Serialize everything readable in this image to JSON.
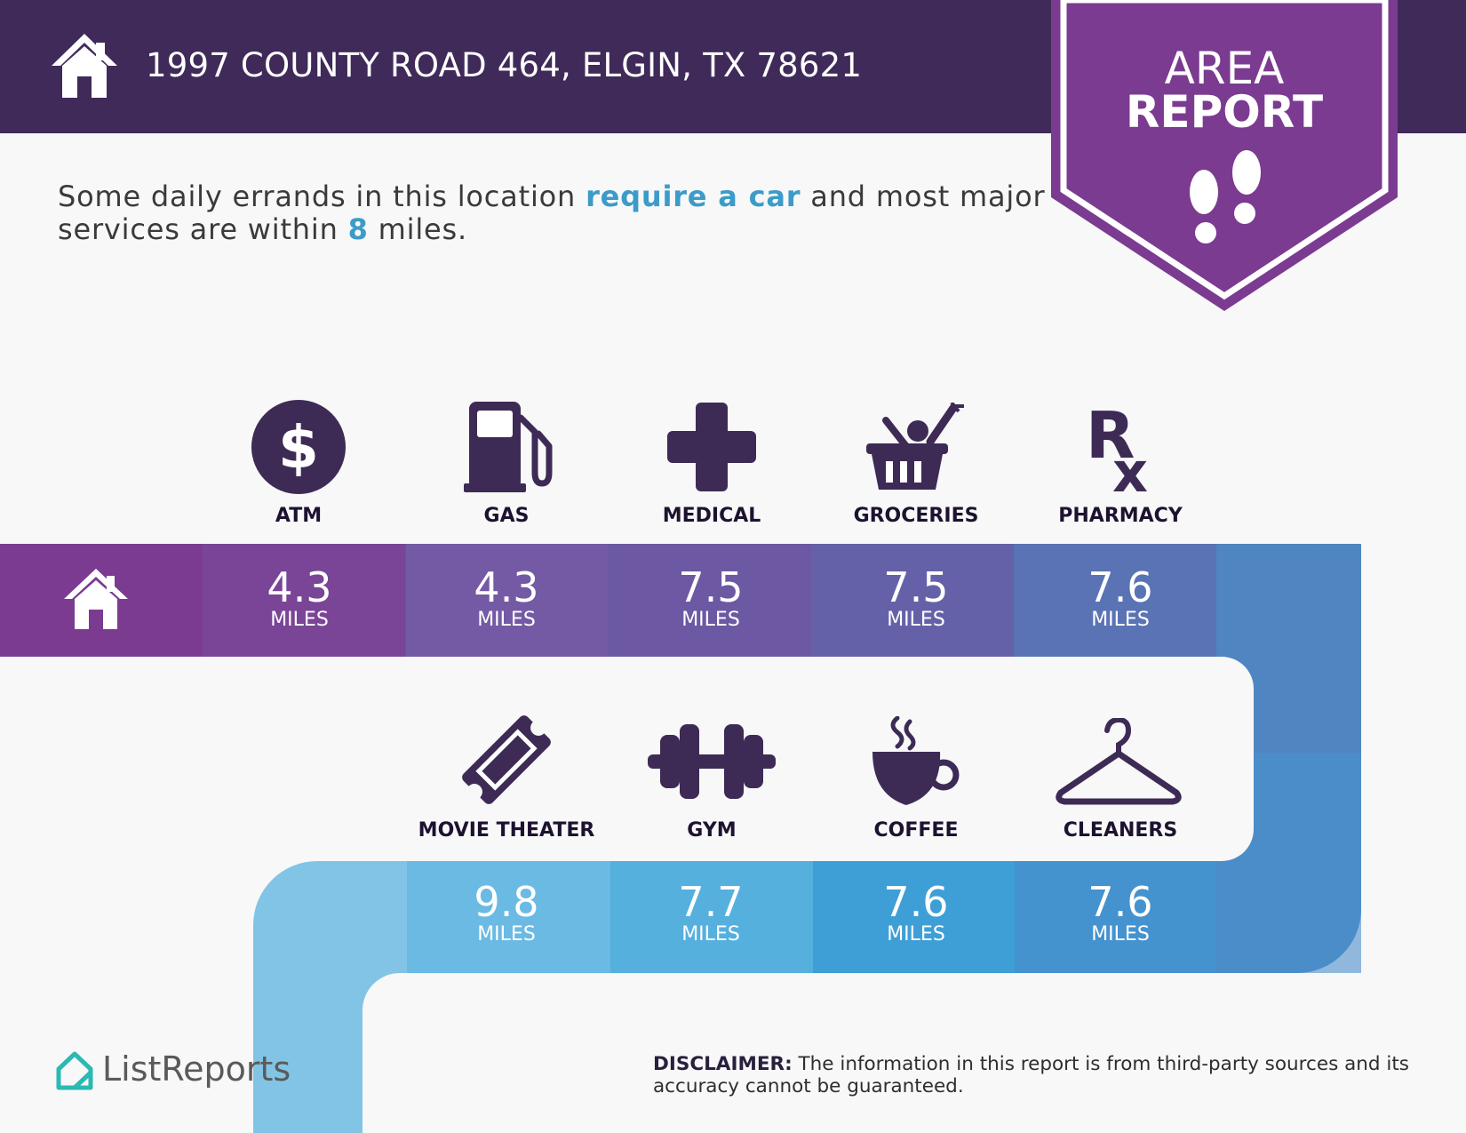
{
  "header": {
    "address": "1997 COUNTY ROAD 464, ELGIN, TX 78621",
    "home_icon": "house-icon"
  },
  "badge": {
    "line1": "AREA",
    "line2": "REPORT",
    "icon": "footprints-icon",
    "color": "#7b3b91"
  },
  "intro": {
    "part1": "Some daily errands in this location ",
    "highlight1": "require a car",
    "part2": " and most major services are within ",
    "highlight2": "8",
    "part3": " miles."
  },
  "amenities_top": [
    {
      "label": "ATM",
      "value": "4.3",
      "unit": "MILES",
      "icon": "dollar-icon"
    },
    {
      "label": "GAS",
      "value": "4.3",
      "unit": "MILES",
      "icon": "gas-pump-icon"
    },
    {
      "label": "MEDICAL",
      "value": "7.5",
      "unit": "MILES",
      "icon": "medical-cross-icon"
    },
    {
      "label": "GROCERIES",
      "value": "7.5",
      "unit": "MILES",
      "icon": "grocery-basket-icon"
    },
    {
      "label": "PHARMACY",
      "value": "7.6",
      "unit": "MILES",
      "icon": "rx-icon"
    }
  ],
  "amenities_bottom": [
    {
      "label": "MOVIE THEATER",
      "value": "9.8",
      "unit": "MILES",
      "icon": "ticket-icon"
    },
    {
      "label": "GYM",
      "value": "7.7",
      "unit": "MILES",
      "icon": "dumbbell-icon"
    },
    {
      "label": "COFFEE",
      "value": "7.6",
      "unit": "MILES",
      "icon": "coffee-cup-icon"
    },
    {
      "label": "CLEANERS",
      "value": "7.6",
      "unit": "MILES",
      "icon": "hanger-icon"
    }
  ],
  "footer": {
    "brand": "ListReports",
    "disclaimer_label": "DISCLAIMER:",
    "disclaimer_text": " The information in this report is from third-party sources and its accuracy cannot be guaranteed."
  },
  "colors": {
    "header_bg": "#3f2a59",
    "icon_color": "#3d2b56",
    "highlight": "#3c9bc9",
    "path_top": [
      "#7b3b91",
      "#7a4497",
      "#6e53a0",
      "#6761a7",
      "#5a73b5",
      "#4f85c0"
    ],
    "path_bottom": [
      "#82c4e6",
      "#62b3e0",
      "#4ba9da",
      "#3f9bd4",
      "#4690cc",
      "#4c8cc7"
    ]
  }
}
